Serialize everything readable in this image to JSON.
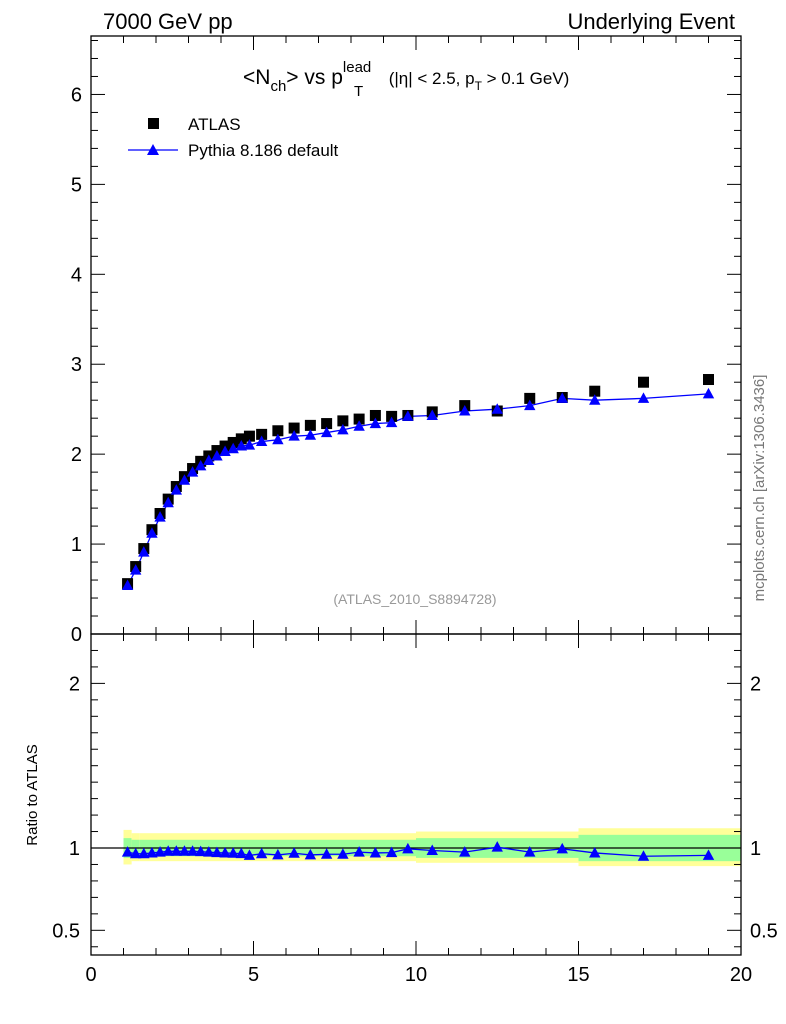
{
  "header": {
    "left": "7000 GeV pp",
    "right": "Underlying Event"
  },
  "side_label": "mcplots.cern.ch [arXiv:1306.3436]",
  "watermark": "(ATLAS_2010_S8894728)",
  "colors": {
    "data": "#000000",
    "mc": "#0000ff",
    "band_inner": "#99ff99",
    "band_outer": "#ffff99"
  },
  "chart_data": [
    {
      "type": "scatter",
      "title_parts": {
        "main": "<N",
        "sub1": "ch",
        "mid": "> vs p",
        "sup": "lead",
        "sub2": "T",
        "cut_a": " (|η| < 2.5, p",
        "cut_sub": "T",
        "cut_b": " > 0.1 GeV)"
      },
      "xlabel": "",
      "ylabel": "",
      "xlim": [
        0,
        20
      ],
      "ylim": [
        0,
        6.65
      ],
      "yticks": [
        {
          "v": 0,
          "label": "0"
        },
        {
          "v": 1,
          "label": "1"
        },
        {
          "v": 2,
          "label": "2"
        },
        {
          "v": 3,
          "label": "3"
        },
        {
          "v": 4,
          "label": "4"
        },
        {
          "v": 5,
          "label": "5"
        },
        {
          "v": 6,
          "label": "6"
        }
      ],
      "legend_placement": "top-left",
      "series": [
        {
          "name": "ATLAS",
          "marker": "square",
          "x": [
            1.125,
            1.375,
            1.625,
            1.875,
            2.125,
            2.375,
            2.625,
            2.875,
            3.125,
            3.375,
            3.625,
            3.875,
            4.125,
            4.375,
            4.625,
            4.875,
            5.25,
            5.75,
            6.25,
            6.75,
            7.25,
            7.75,
            8.25,
            8.75,
            9.25,
            9.75,
            10.5,
            11.5,
            12.5,
            13.5,
            14.5,
            15.5,
            17.0,
            19.0
          ],
          "y": [
            0.56,
            0.75,
            0.95,
            1.16,
            1.34,
            1.5,
            1.64,
            1.75,
            1.84,
            1.92,
            1.98,
            2.04,
            2.09,
            2.13,
            2.17,
            2.2,
            2.22,
            2.26,
            2.29,
            2.32,
            2.34,
            2.37,
            2.39,
            2.43,
            2.42,
            2.43,
            2.47,
            2.54,
            2.48,
            2.62,
            2.63,
            2.7,
            2.8,
            2.83
          ]
        },
        {
          "name": "Pythia 8.186 default",
          "marker": "triangle",
          "x": [
            1.125,
            1.375,
            1.625,
            1.875,
            2.125,
            2.375,
            2.625,
            2.875,
            3.125,
            3.375,
            3.625,
            3.875,
            4.125,
            4.375,
            4.625,
            4.875,
            5.25,
            5.75,
            6.25,
            6.75,
            7.25,
            7.75,
            8.25,
            8.75,
            9.25,
            9.75,
            10.5,
            11.5,
            12.5,
            13.5,
            14.5,
            15.5,
            17.0,
            19.0
          ],
          "y": [
            0.54,
            0.71,
            0.91,
            1.12,
            1.3,
            1.46,
            1.6,
            1.71,
            1.8,
            1.87,
            1.93,
            1.98,
            2.03,
            2.06,
            2.09,
            2.1,
            2.14,
            2.16,
            2.2,
            2.21,
            2.24,
            2.27,
            2.31,
            2.34,
            2.35,
            2.42,
            2.43,
            2.48,
            2.5,
            2.54,
            2.62,
            2.6,
            2.62,
            2.67
          ]
        }
      ]
    },
    {
      "type": "line",
      "ylabel": "Ratio to ATLAS",
      "xlim": [
        0,
        20
      ],
      "ylim": [
        0.35,
        2.3
      ],
      "xticks": [
        {
          "v": 0,
          "label": "0"
        },
        {
          "v": 5,
          "label": "5"
        },
        {
          "v": 10,
          "label": "10"
        },
        {
          "v": 15,
          "label": "15"
        },
        {
          "v": 20,
          "label": "20"
        }
      ],
      "yticks": [
        {
          "v": 0.5,
          "label": "0.5"
        },
        {
          "v": 1,
          "label": "1"
        },
        {
          "v": 2,
          "label": "2"
        }
      ],
      "bands": {
        "x_edges": [
          1.0,
          1.25,
          1.5,
          2.0,
          3.0,
          4.0,
          5.0,
          7.0,
          9.0,
          10.0,
          11.0,
          12.0,
          13.0,
          14.0,
          15.0,
          16.0,
          18.0,
          20.0
        ],
        "inner_lo": [
          0.94,
          0.95,
          0.95,
          0.95,
          0.95,
          0.95,
          0.95,
          0.95,
          0.95,
          0.94,
          0.94,
          0.94,
          0.94,
          0.94,
          0.92,
          0.92,
          0.92
        ],
        "inner_hi": [
          1.06,
          1.05,
          1.05,
          1.05,
          1.05,
          1.05,
          1.05,
          1.05,
          1.05,
          1.06,
          1.06,
          1.06,
          1.06,
          1.06,
          1.08,
          1.08,
          1.08
        ],
        "outer_lo": [
          0.9,
          0.92,
          0.92,
          0.92,
          0.92,
          0.92,
          0.92,
          0.92,
          0.92,
          0.91,
          0.91,
          0.91,
          0.91,
          0.91,
          0.89,
          0.89,
          0.89
        ],
        "outer_hi": [
          1.11,
          1.09,
          1.09,
          1.09,
          1.09,
          1.09,
          1.09,
          1.09,
          1.09,
          1.1,
          1.1,
          1.1,
          1.1,
          1.1,
          1.12,
          1.12,
          1.12
        ]
      },
      "series": [
        {
          "name": "Pythia 8.186 default",
          "x": [
            1.125,
            1.375,
            1.625,
            1.875,
            2.125,
            2.375,
            2.625,
            2.875,
            3.125,
            3.375,
            3.625,
            3.875,
            4.125,
            4.375,
            4.625,
            4.875,
            5.25,
            5.75,
            6.25,
            6.75,
            7.25,
            7.75,
            8.25,
            8.75,
            9.25,
            9.75,
            10.5,
            11.5,
            12.5,
            13.5,
            14.5,
            15.5,
            17.0,
            19.0
          ],
          "y": [
            0.975,
            0.965,
            0.965,
            0.97,
            0.975,
            0.98,
            0.98,
            0.98,
            0.98,
            0.978,
            0.975,
            0.972,
            0.97,
            0.968,
            0.966,
            0.955,
            0.965,
            0.958,
            0.968,
            0.958,
            0.962,
            0.962,
            0.975,
            0.97,
            0.972,
            0.995,
            0.985,
            0.975,
            1.005,
            0.975,
            0.995,
            0.97,
            0.95,
            0.955
          ]
        }
      ]
    }
  ]
}
